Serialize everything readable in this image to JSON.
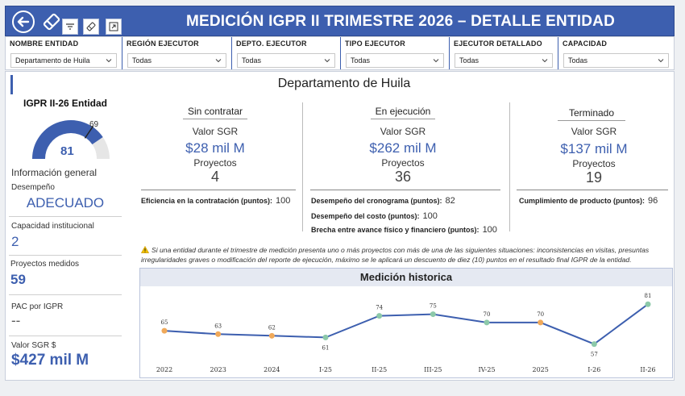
{
  "header": {
    "title": "MEDICIÓN IGPR II TRIMESTRE 2026 – DETALLE ENTIDAD",
    "back_icon": "arrow-left-circle-icon",
    "erase_icon": "eraser-icon",
    "toolbar_icons": [
      "filter-icon",
      "eraser-icon",
      "expand-icon"
    ]
  },
  "filters": [
    {
      "label": "NOMBRE ENTIDAD",
      "value": "Departamento de Huila"
    },
    {
      "label": "REGIÓN EJECUTOR",
      "value": "Todas"
    },
    {
      "label": "DEPTO. EJECUTOR",
      "value": "Todas"
    },
    {
      "label": "TIPO EJECUTOR",
      "value": "Todas"
    },
    {
      "label": "EJECUTOR DETALLADO",
      "value": "Todas"
    },
    {
      "label": "CAPACIDAD",
      "value": "Todas"
    }
  ],
  "entity_title": "Departamento de Huila",
  "kpi": {
    "title": "IGPR II-26 Entidad",
    "value": "81",
    "target": "69",
    "fraction": 0.81,
    "colors": {
      "fill": "#3d5faf",
      "track": "#e6e6e6"
    }
  },
  "info": {
    "title": "Información general",
    "items": [
      {
        "label": "Desempeño",
        "value": "ADECUADO"
      },
      {
        "label": "Capacidad institucional",
        "value": "2"
      },
      {
        "label": "Proyectos medidos",
        "value": "59"
      },
      {
        "label": "PAC por IGPR",
        "value": "--"
      },
      {
        "label": "Valor SGR $",
        "value": "$427 mil M"
      }
    ]
  },
  "columns": [
    {
      "title": "Sin contratar",
      "valor_label": "Valor SGR",
      "valor": "$28 mil M",
      "proy_label": "Proyectos",
      "proy": "4",
      "metrics": [
        {
          "label": "Eficiencia en la contratación (puntos):",
          "value": "100"
        }
      ]
    },
    {
      "title": "En ejecución",
      "valor_label": "Valor SGR",
      "valor": "$262 mil M",
      "proy_label": "Proyectos",
      "proy": "36",
      "metrics": [
        {
          "label": "Desempeño del cronograma (puntos):",
          "value": "82"
        },
        {
          "label": "Desempeño del costo (puntos):",
          "value": "100"
        },
        {
          "label": "Brecha entre avance físico y financiero (puntos):",
          "value": "100"
        }
      ]
    },
    {
      "title": "Terminado",
      "valor_label": "Valor SGR",
      "valor": "$137 mil M",
      "proy_label": "Proyectos",
      "proy": "19",
      "metrics": [
        {
          "label": "Cumplimiento de producto (puntos):",
          "value": "96"
        }
      ]
    }
  ],
  "note": "Si una entidad durante el trimestre de medición presenta uno o más proyectos con más de una de las siguientes situaciones: inconsistencias en visitas, presuntas irregularidades graves o modificación del reporte de ejecución, máximo se le aplicará un descuento de diez (10) puntos en el resultado final IGPR de la entidad.",
  "chart_data": {
    "type": "line",
    "title": "Medición historica",
    "categories": [
      "2022",
      "2023",
      "2024",
      "I-25",
      "II-25",
      "III-25",
      "IV-25",
      "2025",
      "I-26",
      "II-26"
    ],
    "values": [
      65,
      63,
      62,
      61,
      74,
      75,
      70,
      70,
      57,
      81
    ],
    "point_colors": [
      "#f0a95a",
      "#f0a95a",
      "#f0a95a",
      "#8cc9a9",
      "#8cc9a9",
      "#8cc9a9",
      "#8cc9a9",
      "#f0a95a",
      "#8cc9a9",
      "#8cc9a9"
    ],
    "line_color": "#3d5faf",
    "ylim": [
      50,
      85
    ],
    "grid": false
  }
}
